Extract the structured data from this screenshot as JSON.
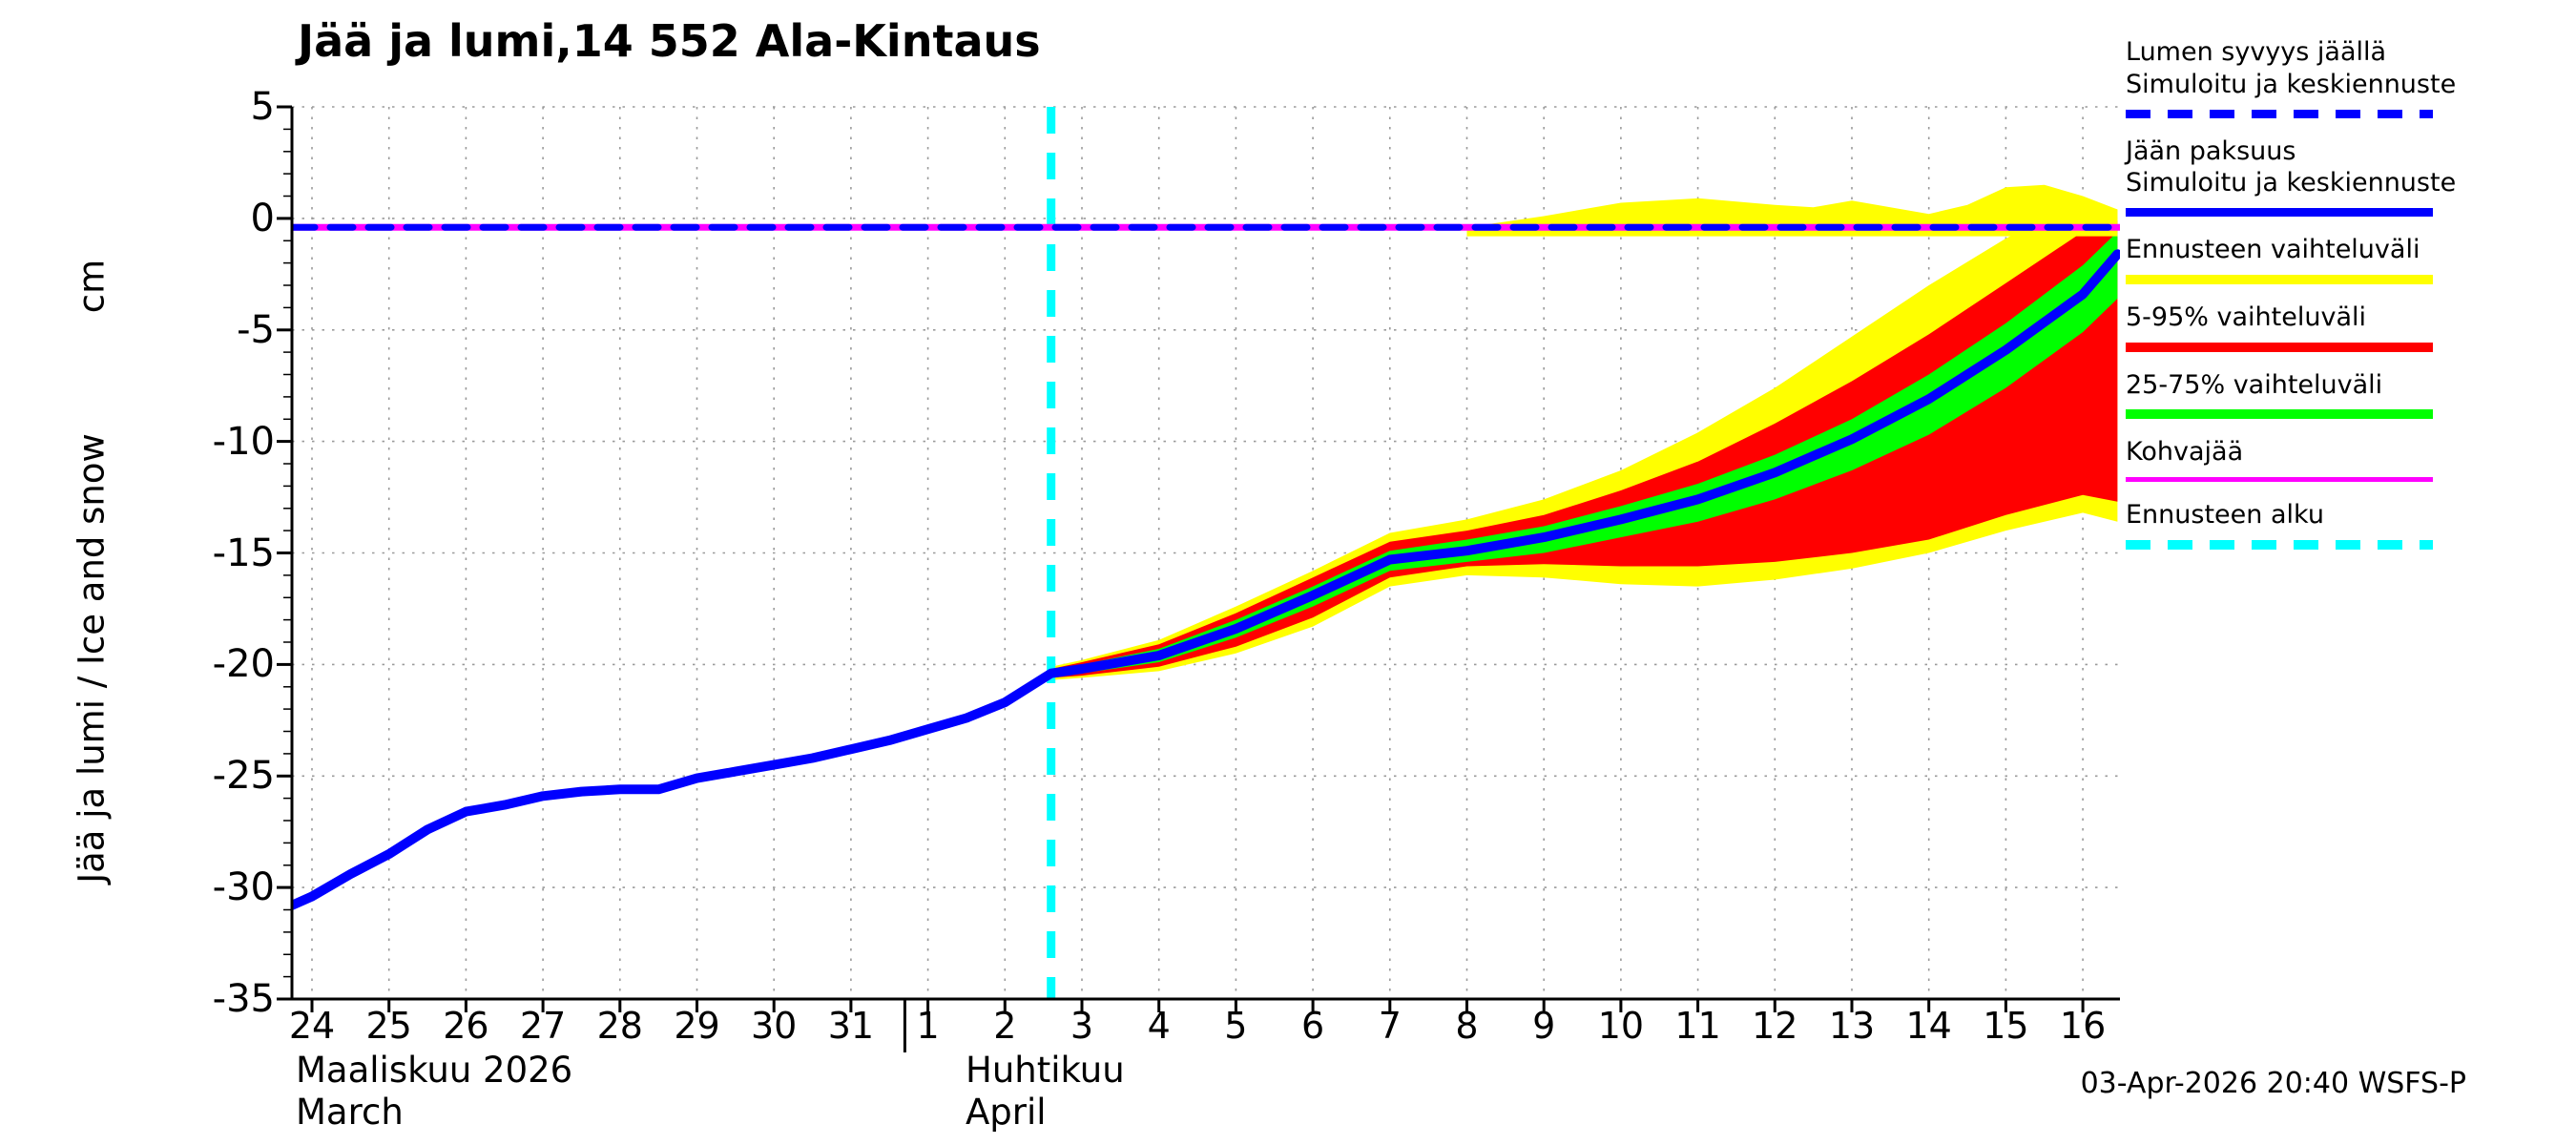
{
  "title": "Jää ja lumi,14 552 Ala-Kintaus",
  "y_axis": {
    "label": "Jää ja lumi / Ice and snow",
    "unit": "cm"
  },
  "x_axis": {
    "month_labels": [
      {
        "fi": "Maaliskuu 2026",
        "en": "March"
      },
      {
        "fi": "Huhtikuu",
        "en": "April"
      }
    ]
  },
  "footer": {
    "timestamp": "03-Apr-2026 20:40 WSFS-P"
  },
  "legend": {
    "items": [
      {
        "key": "snow-depth-line",
        "lines": [
          "Lumen syvyys jäällä",
          "Simuloitu ja keskiennuste"
        ],
        "style": "dashed",
        "color": "#0000ff",
        "thickness": 9
      },
      {
        "key": "ice-thickness-line",
        "lines": [
          "Jään paksuus",
          "Simuloitu ja keskiennuste"
        ],
        "style": "solid",
        "color": "#0000ff",
        "thickness": 9
      },
      {
        "key": "forecast-range",
        "lines": [
          "Ennusteen vaihteluväli"
        ],
        "style": "solid",
        "color": "#ffff00",
        "thickness": 10
      },
      {
        "key": "range-5-95",
        "lines": [
          "5-95% vaihteluväli"
        ],
        "style": "solid",
        "color": "#ff0000",
        "thickness": 10
      },
      {
        "key": "range-25-75",
        "lines": [
          "25-75% vaihteluväli"
        ],
        "style": "solid",
        "color": "#00ff00",
        "thickness": 10
      },
      {
        "key": "kohvajaa",
        "lines": [
          "Kohvajää"
        ],
        "style": "solid",
        "color": "#ff00ff",
        "thickness": 5
      },
      {
        "key": "forecast-start",
        "lines": [
          "Ennusteen alku"
        ],
        "style": "dashed",
        "color": "#00ffff",
        "thickness": 10
      }
    ]
  },
  "chart_data": {
    "type": "line",
    "title": "Jää ja lumi,14 552 Ala-Kintaus",
    "ylabel": "Jää ja lumi / Ice and snow (cm)",
    "ylim": [
      -35,
      5
    ],
    "y_ticks": [
      5,
      0,
      -5,
      -10,
      -15,
      -20,
      -25,
      -30,
      -35
    ],
    "x_tick_labels": [
      "24",
      "25",
      "26",
      "27",
      "28",
      "29",
      "30",
      "31",
      "1",
      "2",
      "3",
      "4",
      "5",
      "6",
      "7",
      "8",
      "9",
      "10",
      "11",
      "12",
      "13",
      "14",
      "15",
      "16"
    ],
    "x_note": "day index 0 = 24 March 2026, 8 = 1 April 2026, 23 = 16 April 2026",
    "month_boundary_day": 7.7,
    "forecast_start_day": 9.6,
    "grid": true,
    "legend_position": "right-outside",
    "series": [
      {
        "key": "kohvajaa-line",
        "name": "Kohvajää",
        "color": "#ff00ff",
        "style": "solid",
        "width": 7,
        "x": [
          -0.26,
          23.48
        ],
        "y": [
          -0.4,
          -0.4
        ]
      },
      {
        "key": "snow-depth-line",
        "name": "Lumen syvyys jäällä - simuloitu ja keskiennuste",
        "color": "#0000ff",
        "style": "dashed",
        "dash": "24 16",
        "width": 7,
        "x": [
          -0.26,
          23.48
        ],
        "y": [
          -0.4,
          -0.4
        ]
      },
      {
        "key": "ice-thickness-line",
        "name": "Jään paksuus - simuloitu ja keskiennuste",
        "color": "#0000ff",
        "style": "solid",
        "width": 10,
        "x": [
          -0.26,
          0,
          0.5,
          1,
          1.5,
          2,
          2.5,
          3,
          3.5,
          4,
          4.5,
          5,
          5.5,
          6,
          6.5,
          7,
          7.5,
          8,
          8.5,
          9,
          9.6,
          10,
          11,
          12,
          13,
          14,
          15,
          16,
          17,
          18,
          19,
          20,
          21,
          22,
          23,
          23.45
        ],
        "y": [
          -30.8,
          -30.4,
          -29.4,
          -28.5,
          -27.4,
          -26.6,
          -26.3,
          -25.9,
          -25.7,
          -25.6,
          -25.6,
          -25.1,
          -24.8,
          -24.5,
          -24.2,
          -23.8,
          -23.4,
          -22.9,
          -22.4,
          -21.7,
          -20.4,
          -20.2,
          -19.6,
          -18.4,
          -16.9,
          -15.3,
          -14.9,
          -14.3,
          -13.5,
          -12.6,
          -11.4,
          -9.9,
          -8.1,
          -5.9,
          -3.4,
          -1.6
        ]
      }
    ],
    "bands": [
      {
        "key": "forecast-range-band",
        "name": "Ennusteen vaihteluväli (jää)",
        "color": "#ffff00",
        "x": [
          9.6,
          10,
          11,
          12,
          13,
          14,
          15,
          16,
          17,
          18,
          19,
          20,
          21,
          22,
          23,
          23.45
        ],
        "upper": [
          -20.1,
          -19.8,
          -18.9,
          -17.4,
          -15.8,
          -14.1,
          -13.5,
          -12.6,
          -11.3,
          -9.6,
          -7.6,
          -5.3,
          -3.0,
          -0.9,
          0.8,
          0.4
        ],
        "lower": [
          -20.7,
          -20.6,
          -20.3,
          -19.5,
          -18.3,
          -16.5,
          -16.0,
          -16.1,
          -16.4,
          -16.5,
          -16.2,
          -15.7,
          -15.0,
          -14.0,
          -13.2,
          -13.6
        ]
      },
      {
        "key": "band-5-95",
        "name": "5-95% vaihteluväli",
        "color": "#ff0000",
        "x": [
          9.6,
          10,
          11,
          12,
          13,
          14,
          15,
          16,
          17,
          18,
          19,
          20,
          21,
          22,
          23,
          23.45
        ],
        "upper": [
          -20.2,
          -19.9,
          -19.1,
          -17.7,
          -16.1,
          -14.5,
          -14.0,
          -13.3,
          -12.2,
          -10.9,
          -9.2,
          -7.3,
          -5.2,
          -2.9,
          -0.6,
          -0.1
        ],
        "lower": [
          -20.6,
          -20.5,
          -20.1,
          -19.2,
          -17.9,
          -16.1,
          -15.6,
          -15.5,
          -15.6,
          -15.6,
          -15.4,
          -15.0,
          -14.4,
          -13.3,
          -12.4,
          -12.7
        ]
      },
      {
        "key": "band-25-75",
        "name": "25-75% vaihteluväli",
        "color": "#00ff00",
        "x": [
          9.6,
          10,
          11,
          12,
          13,
          14,
          15,
          16,
          17,
          18,
          19,
          20,
          21,
          22,
          23,
          23.45
        ],
        "upper": [
          -20.3,
          -20.0,
          -19.3,
          -18.0,
          -16.5,
          -14.9,
          -14.4,
          -13.8,
          -12.9,
          -11.9,
          -10.6,
          -9.0,
          -7.0,
          -4.7,
          -2.1,
          -0.6
        ],
        "lower": [
          -20.5,
          -20.4,
          -19.9,
          -18.8,
          -17.4,
          -15.8,
          -15.4,
          -15.0,
          -14.3,
          -13.6,
          -12.6,
          -11.3,
          -9.7,
          -7.6,
          -5.1,
          -3.6
        ]
      },
      {
        "key": "snow-forecast-range-band",
        "name": "Ennusteen vaihteluväli (lumi jäällä)",
        "color": "#ffff00",
        "x": [
          15.0,
          16,
          17,
          18,
          19,
          19.5,
          20,
          20.5,
          21,
          21.5,
          22,
          22.5,
          23,
          23.45
        ],
        "upper": [
          -0.4,
          0.1,
          0.7,
          0.9,
          0.6,
          0.5,
          0.8,
          0.5,
          0.2,
          0.6,
          1.4,
          1.5,
          1.0,
          0.4
        ],
        "lower": [
          -0.8,
          -0.8,
          -0.8,
          -0.8,
          -0.8,
          -0.8,
          -0.8,
          -0.8,
          -0.8,
          -0.8,
          -0.8,
          -0.8,
          -0.8,
          -0.8
        ]
      }
    ]
  }
}
